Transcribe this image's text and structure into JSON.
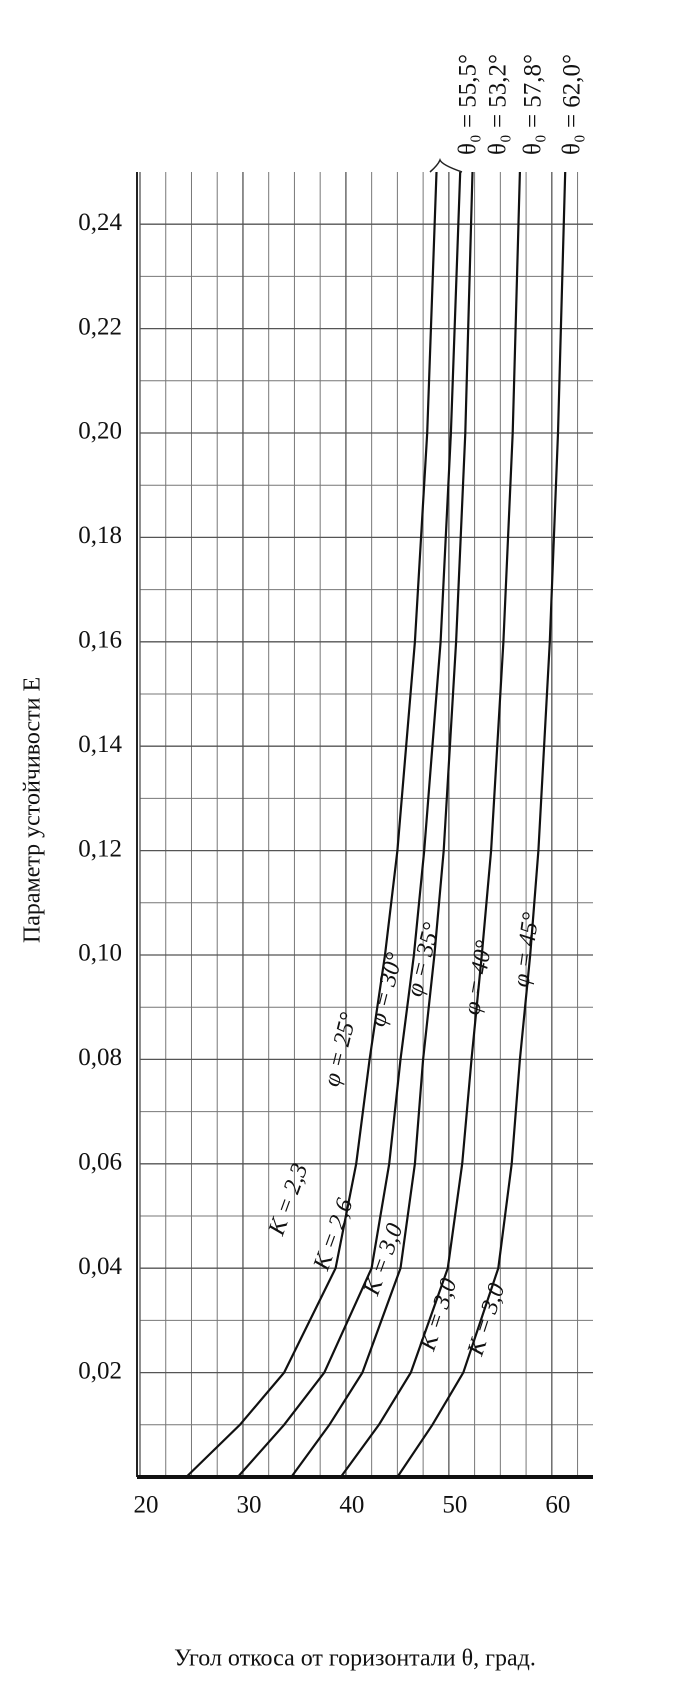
{
  "chart_data": {
    "type": "line",
    "x_label": "Угол откоса от горизонтали θ, град.",
    "y_label": "Параметр устойчивости E",
    "xlim": [
      20,
      64
    ],
    "ylim": [
      0,
      0.25
    ],
    "xticks": [
      20,
      30,
      40,
      50,
      60
    ],
    "yticks": [
      {
        "value": 0.02,
        "label": "0,02"
      },
      {
        "value": 0.04,
        "label": "0,04"
      },
      {
        "value": 0.06,
        "label": "0,06"
      },
      {
        "value": 0.08,
        "label": "0,08"
      },
      {
        "value": 0.1,
        "label": "0,10"
      },
      {
        "value": 0.12,
        "label": "0,12"
      },
      {
        "value": 0.14,
        "label": "0,14"
      },
      {
        "value": 0.16,
        "label": "0,16"
      },
      {
        "value": 0.18,
        "label": "0,18"
      },
      {
        "value": 0.2,
        "label": "0,20"
      },
      {
        "value": 0.22,
        "label": "0,22"
      },
      {
        "value": 0.24,
        "label": "0,24"
      }
    ],
    "grid": true,
    "theta_labels": [
      "θ₀ = 55,5°",
      "θ₀ = 53,2°",
      "θ₀ = 57,8°",
      "θ₀ = 62,0°"
    ],
    "series": [
      {
        "phi_label": "φ = 25°",
        "k_label": "K = 2,3",
        "color": "#111111",
        "x": [
          24.5,
          29.7,
          34.0,
          39.0,
          41.0,
          42.3,
          43.8,
          45.0,
          46.7,
          47.9,
          48.8
        ],
        "values": [
          0,
          0.01,
          0.02,
          0.04,
          0.06,
          0.08,
          0.1,
          0.12,
          0.16,
          0.2,
          0.25
        ]
      },
      {
        "phi_label": "φ = 30°",
        "k_label": "K = 2,6",
        "color": "#111111",
        "x": [
          29.5,
          34.0,
          37.9,
          42.5,
          44.2,
          45.3,
          46.6,
          47.6,
          49.2,
          50.2,
          51.1
        ],
        "values": [
          0,
          0.01,
          0.02,
          0.04,
          0.06,
          0.08,
          0.1,
          0.12,
          0.16,
          0.2,
          0.25
        ]
      },
      {
        "phi_label": "φ = 35°",
        "k_label": "K = 3,0",
        "color": "#111111",
        "x": [
          34.7,
          38.4,
          41.6,
          45.3,
          46.7,
          47.5,
          48.6,
          49.5,
          50.7,
          51.6,
          52.3
        ],
        "values": [
          0,
          0.01,
          0.02,
          0.04,
          0.06,
          0.08,
          0.1,
          0.12,
          0.16,
          0.2,
          0.25
        ]
      },
      {
        "phi_label": "φ = 40°",
        "k_label": "K = 3,0",
        "color": "#111111",
        "x": [
          39.5,
          43.2,
          46.3,
          49.9,
          51.3,
          52.2,
          53.2,
          54.1,
          55.3,
          56.2,
          56.9
        ],
        "values": [
          0,
          0.01,
          0.02,
          0.04,
          0.06,
          0.08,
          0.1,
          0.12,
          0.16,
          0.2,
          0.25
        ]
      },
      {
        "phi_label": "φ = 45°",
        "k_label": "K = 3,0",
        "color": "#111111",
        "x": [
          45.0,
          48.4,
          51.4,
          54.8,
          56.1,
          56.9,
          57.9,
          58.7,
          59.8,
          60.6,
          61.3
        ],
        "values": [
          0,
          0.01,
          0.02,
          0.04,
          0.06,
          0.08,
          0.1,
          0.12,
          0.16,
          0.2,
          0.25
        ]
      }
    ]
  }
}
